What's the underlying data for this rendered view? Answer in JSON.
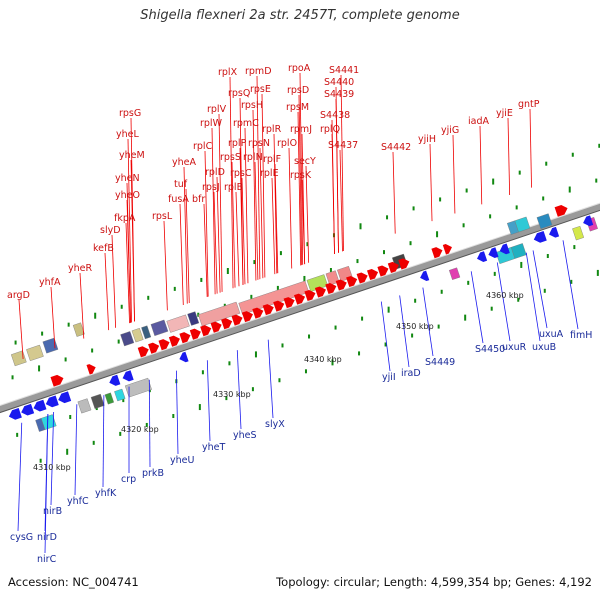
{
  "title": "Shigella flexneri 2a str. 2457T, complete genome",
  "footer": {
    "accession": "Accession: NC_004741",
    "summary": "Topology: circular; Length: 4,599,354 bp; Genes: 4,192"
  },
  "colors": {
    "forward": "#ee0000",
    "reverse": "#1a1aee",
    "backbone": "#9a9a9a",
    "tick": "#118811"
  },
  "scale_labels": [
    "4310 kbp",
    "4320 kbp",
    "4330 kbp",
    "4340 kbp",
    "4350 kbp",
    "4360 kbp"
  ],
  "genes_above": [
    "argD",
    "yhfA",
    "yheR",
    "kefB",
    "slyD",
    "fkpA",
    "yheO",
    "yheN",
    "yheM",
    "yheL",
    "rpsG",
    "rpsL",
    "fusA",
    "tuf",
    "bfr",
    "yheA",
    "rplC",
    "rplD",
    "rplW",
    "rplB",
    "rplV",
    "rpsS",
    "rpsJ",
    "rpsC",
    "rplP",
    "rpmC",
    "rpsQ",
    "rplN",
    "rplX",
    "rpsN",
    "rplE",
    "rplF",
    "rplR",
    "rpsH",
    "rpsE",
    "rpmD",
    "rplO",
    "secY",
    "rpmJ",
    "rpsM",
    "rpsD",
    "rpsK",
    "rplQ",
    "rpoA",
    "S4437",
    "S4438",
    "S4439",
    "S4440",
    "S4441",
    "S4442",
    "yjiH",
    "yjiG",
    "iadA",
    "yjiE",
    "gntP"
  ],
  "genes_below": [
    "cysG",
    "nirC",
    "nirD",
    "nirB",
    "yhfC",
    "yhfK",
    "crp",
    "prkB",
    "yheU",
    "yheT",
    "yheS",
    "slyX",
    "yjiI",
    "iraD",
    "S4449",
    "S4450",
    "uxuR",
    "uxuB",
    "uxuA",
    "fimH"
  ]
}
